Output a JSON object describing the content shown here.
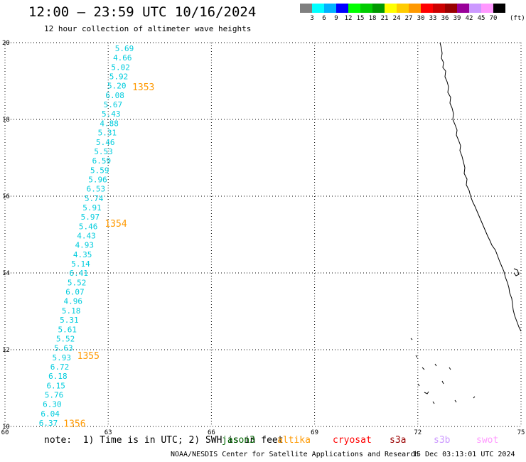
{
  "header": {
    "title": "12:00 – 23:59 UTC 10/16/2024",
    "subtitle": "12 hour collection of altimeter wave heights"
  },
  "colorbar": {
    "colors": [
      "#7f7f7f",
      "#00ffff",
      "#00b2ff",
      "#0000ff",
      "#00ff00",
      "#00cc00",
      "#009900",
      "#ffff00",
      "#ffcc00",
      "#ff9900",
      "#ff0000",
      "#cc0000",
      "#990000",
      "#990099",
      "#cc99ff",
      "#ff99ff",
      "#000000"
    ],
    "tick_labels": [
      "3",
      "6",
      "9",
      "12",
      "15",
      "18",
      "21",
      "24",
      "27",
      "30",
      "33",
      "36",
      "39",
      "42",
      "45",
      "70"
    ],
    "units": "(ft)"
  },
  "axes": {
    "x_ticks": [
      "60",
      "63",
      "66",
      "69",
      "72",
      "75"
    ],
    "y_ticks": [
      "10",
      "12",
      "14",
      "16",
      "18",
      "20"
    ],
    "xlim": [
      60,
      75
    ],
    "ylim": [
      10,
      20
    ]
  },
  "track": {
    "color": "#00ccdd",
    "values": [
      "5.69",
      "4.66",
      "5.02",
      "5.92",
      "5.20",
      "6.08",
      "5.67",
      "5.43",
      "4.88",
      "5.31",
      "5.46",
      "5.53",
      "6.59",
      "5.59",
      "5.96",
      "6.53",
      "5.74",
      "5.91",
      "5.97",
      "5.46",
      "4.43",
      "4.93",
      "4.35",
      "5.14",
      "6.41",
      "5.52",
      "6.07",
      "4.96",
      "5.18",
      "5.31",
      "5.61",
      "5.52",
      "5.63",
      "5.93",
      "6.72",
      "6.18",
      "6.15",
      "5.76",
      "6.30",
      "6.04",
      "6.37"
    ]
  },
  "time_labels": {
    "color": "#ff9900",
    "items": [
      {
        "text": "1353",
        "lon": 63.7,
        "lat": 18.85
      },
      {
        "text": "1354",
        "lon": 62.9,
        "lat": 15.3
      },
      {
        "text": "1355",
        "lon": 62.1,
        "lat": 11.85
      },
      {
        "text": "1356",
        "lon": 61.7,
        "lat": 10.08
      }
    ]
  },
  "note": "note:  1) Time is in UTC; 2) SWH is in feet",
  "missions": [
    {
      "name": "jason3",
      "color": "#006600"
    },
    {
      "name": "altika",
      "color": "#ff9900"
    },
    {
      "name": "cryosat",
      "color": "#ff0000"
    },
    {
      "name": "s3a",
      "color": "#990000"
    },
    {
      "name": "s3b",
      "color": "#cc99ff"
    },
    {
      "name": "swot",
      "color": "#ff99ff"
    }
  ],
  "footer": {
    "credit": "NOAA/NESDIS Center for Satellite Applications and Research",
    "timestamp": "15 Dec 03:13:01 UTC 2024"
  }
}
